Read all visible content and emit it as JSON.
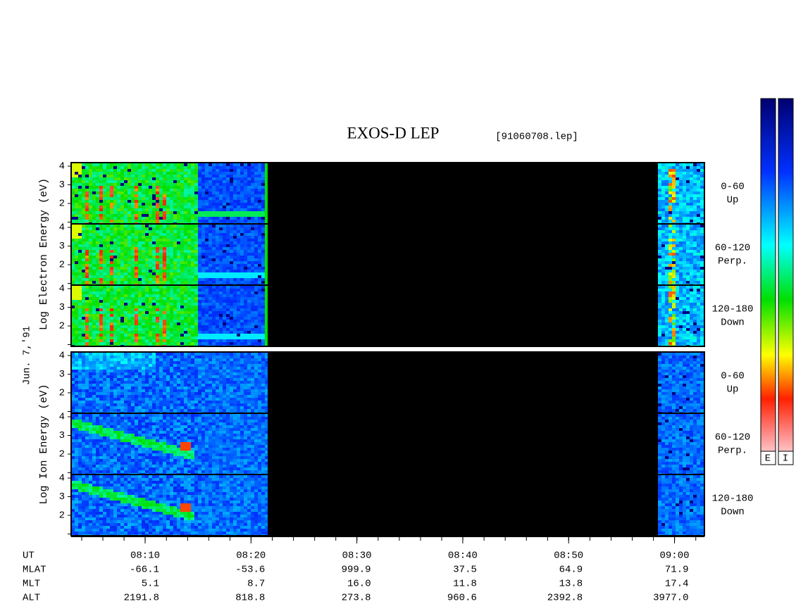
{
  "header": {
    "title": "EXOS-D LEP",
    "file": "[91060708.lep]"
  },
  "date": "Jun. 7,'91",
  "electron": {
    "axis_label": "Log Electron Energy (eV)",
    "energy_ticks": [
      2,
      3,
      4
    ],
    "panels": [
      {
        "range": "0-60",
        "direction": "Up"
      },
      {
        "range": "60-120",
        "direction": "Perp."
      },
      {
        "range": "120-180",
        "direction": "Down"
      }
    ]
  },
  "ion": {
    "axis_label": "Log Ion Energy (eV)",
    "energy_ticks": [
      2,
      3,
      4
    ],
    "panels": [
      {
        "range": "0-60",
        "direction": "Up"
      },
      {
        "range": "60-120",
        "direction": "Perp."
      },
      {
        "range": "120-180",
        "direction": "Down"
      }
    ]
  },
  "time_axis": {
    "label": "UT",
    "ticks": [
      "08:10",
      "08:20",
      "08:30",
      "08:40",
      "08:50",
      "09:00"
    ]
  },
  "ephemeris": {
    "rows": [
      {
        "label": "MLAT",
        "values": [
          "-66.1",
          "-53.6",
          "999.9",
          "37.5",
          "64.9",
          "71.9"
        ]
      },
      {
        "label": "MLT",
        "values": [
          "5.1",
          "8.7",
          "16.0",
          "11.8",
          "13.8",
          "17.4"
        ]
      },
      {
        "label": "ALT",
        "values": [
          "2191.8",
          "818.8",
          "273.8",
          "960.6",
          "2392.8",
          "3977.0"
        ]
      }
    ]
  },
  "colorbar_labels": [
    "E",
    "I"
  ]
}
